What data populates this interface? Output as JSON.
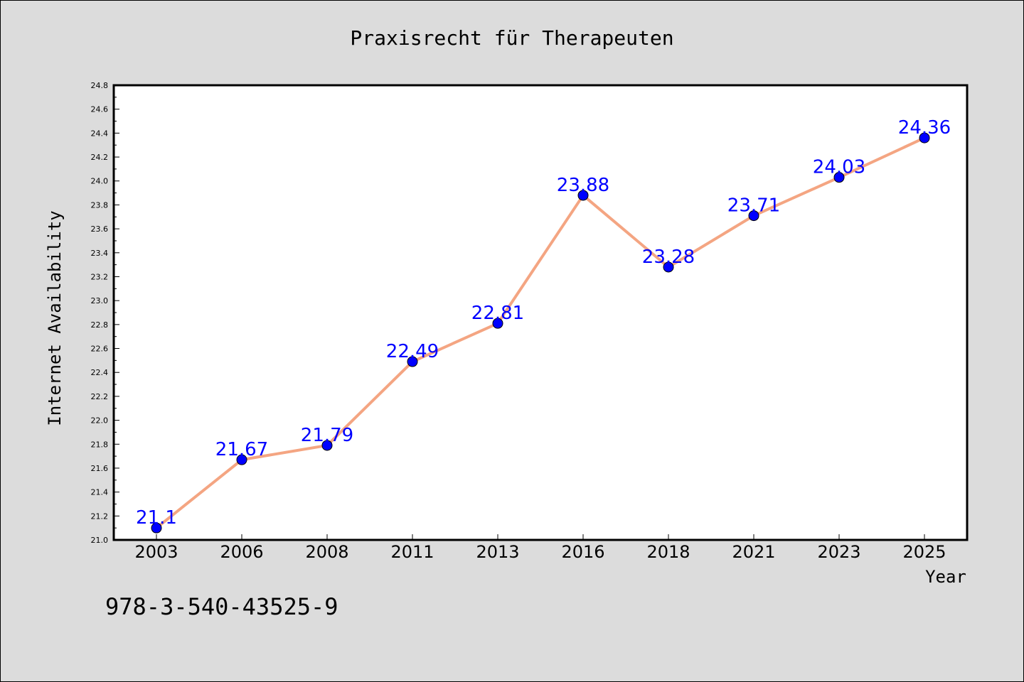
{
  "chart_data": {
    "type": "line",
    "title": "Praxisrecht für Therapeuten",
    "xlabel": "Year",
    "ylabel": "Internet Availability",
    "categories": [
      "2003",
      "2006",
      "2008",
      "2011",
      "2013",
      "2016",
      "2018",
      "2021",
      "2023",
      "2025"
    ],
    "values": [
      21.1,
      21.67,
      21.79,
      22.49,
      22.81,
      23.88,
      23.28,
      23.71,
      24.03,
      24.36
    ],
    "data_labels": [
      "21.1",
      "21.67",
      "21.79",
      "22.49",
      "22.81",
      "23.88",
      "23.28",
      "23.71",
      "24.03",
      "24.36"
    ],
    "ylim": [
      21.0,
      24.8
    ],
    "yticks": [
      "21.0",
      "21.2",
      "21.4",
      "21.6",
      "21.8",
      "22.0",
      "22.2",
      "22.4",
      "22.6",
      "22.8",
      "23.0",
      "23.2",
      "23.4",
      "23.6",
      "23.8",
      "24.0",
      "24.2",
      "24.4",
      "24.6",
      "24.8"
    ],
    "grid": false,
    "line_color": "#f4a582",
    "marker_color": "#0000ff",
    "label_color": "#0000ff"
  },
  "footer_text": "978-3-540-43525-9"
}
